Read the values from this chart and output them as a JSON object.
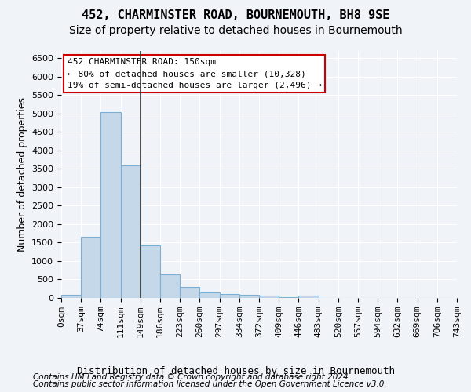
{
  "title": "452, CHARMINSTER ROAD, BOURNEMOUTH, BH8 9SE",
  "subtitle": "Size of property relative to detached houses in Bournemouth",
  "xlabel": "Distribution of detached houses by size in Bournemouth",
  "ylabel": "Number of detached properties",
  "bin_labels": [
    "0sqm",
    "37sqm",
    "74sqm",
    "111sqm",
    "149sqm",
    "186sqm",
    "223sqm",
    "260sqm",
    "297sqm",
    "334sqm",
    "372sqm",
    "409sqm",
    "446sqm",
    "483sqm",
    "520sqm",
    "557sqm",
    "594sqm",
    "632sqm",
    "669sqm",
    "706sqm",
    "743sqm"
  ],
  "bar_values": [
    75,
    1650,
    5050,
    3600,
    1420,
    630,
    290,
    155,
    115,
    80,
    55,
    30,
    55,
    0,
    0,
    0,
    0,
    0,
    0,
    0
  ],
  "bar_color": "#c5d8ea",
  "bar_edge_color": "#7bafd4",
  "vline_x": 4,
  "vline_color": "#333333",
  "annotation_text": "452 CHARMINSTER ROAD: 150sqm\n← 80% of detached houses are smaller (10,328)\n19% of semi-detached houses are larger (2,496) →",
  "annotation_box_color": "#ffffff",
  "annotation_border_color": "#cc0000",
  "ylim": [
    0,
    6700
  ],
  "yticks": [
    0,
    500,
    1000,
    1500,
    2000,
    2500,
    3000,
    3500,
    4000,
    4500,
    5000,
    5500,
    6000,
    6500
  ],
  "footer_line1": "Contains HM Land Registry data © Crown copyright and database right 2024.",
  "footer_line2": "Contains public sector information licensed under the Open Government Licence v3.0.",
  "background_color": "#f0f4f8",
  "plot_background_color": "#f0f4f8",
  "grid_color": "#ffffff",
  "title_fontsize": 11,
  "subtitle_fontsize": 10,
  "axis_label_fontsize": 9,
  "tick_fontsize": 8,
  "annotation_fontsize": 8,
  "footer_fontsize": 7.5
}
